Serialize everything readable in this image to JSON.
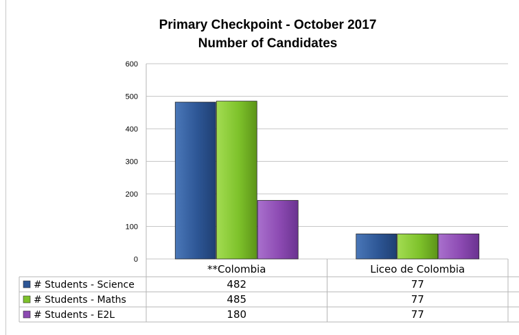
{
  "chart_data": {
    "type": "bar",
    "title": "Primary Checkpoint - October 2017",
    "subtitle": "Number of Candidates",
    "xlabel": "",
    "ylabel": "",
    "ylim": [
      0,
      600
    ],
    "yticks": [
      "0",
      "100",
      "200",
      "300",
      "400",
      "500",
      "600"
    ],
    "grid": true,
    "legend_placement": "data-table-left",
    "categories": [
      "**Colombia",
      "Liceo de Colombia"
    ],
    "series": [
      {
        "name": "# Students - Science",
        "values": [
          482,
          77
        ],
        "color": "#2d5695"
      },
      {
        "name": "# Students - Maths",
        "values": [
          485,
          77
        ],
        "color": "#7ec22b"
      },
      {
        "name": "# Students - E2L",
        "values": [
          180,
          77
        ],
        "color": "#8c4ab2"
      }
    ],
    "data_table": {
      "rows": [
        {
          "label": "# Students - Science",
          "cells": [
            "482",
            "77"
          ]
        },
        {
          "label": "# Students - Maths",
          "cells": [
            "485",
            "77"
          ]
        },
        {
          "label": "# Students - E2L",
          "cells": [
            "180",
            "77"
          ]
        }
      ]
    }
  }
}
